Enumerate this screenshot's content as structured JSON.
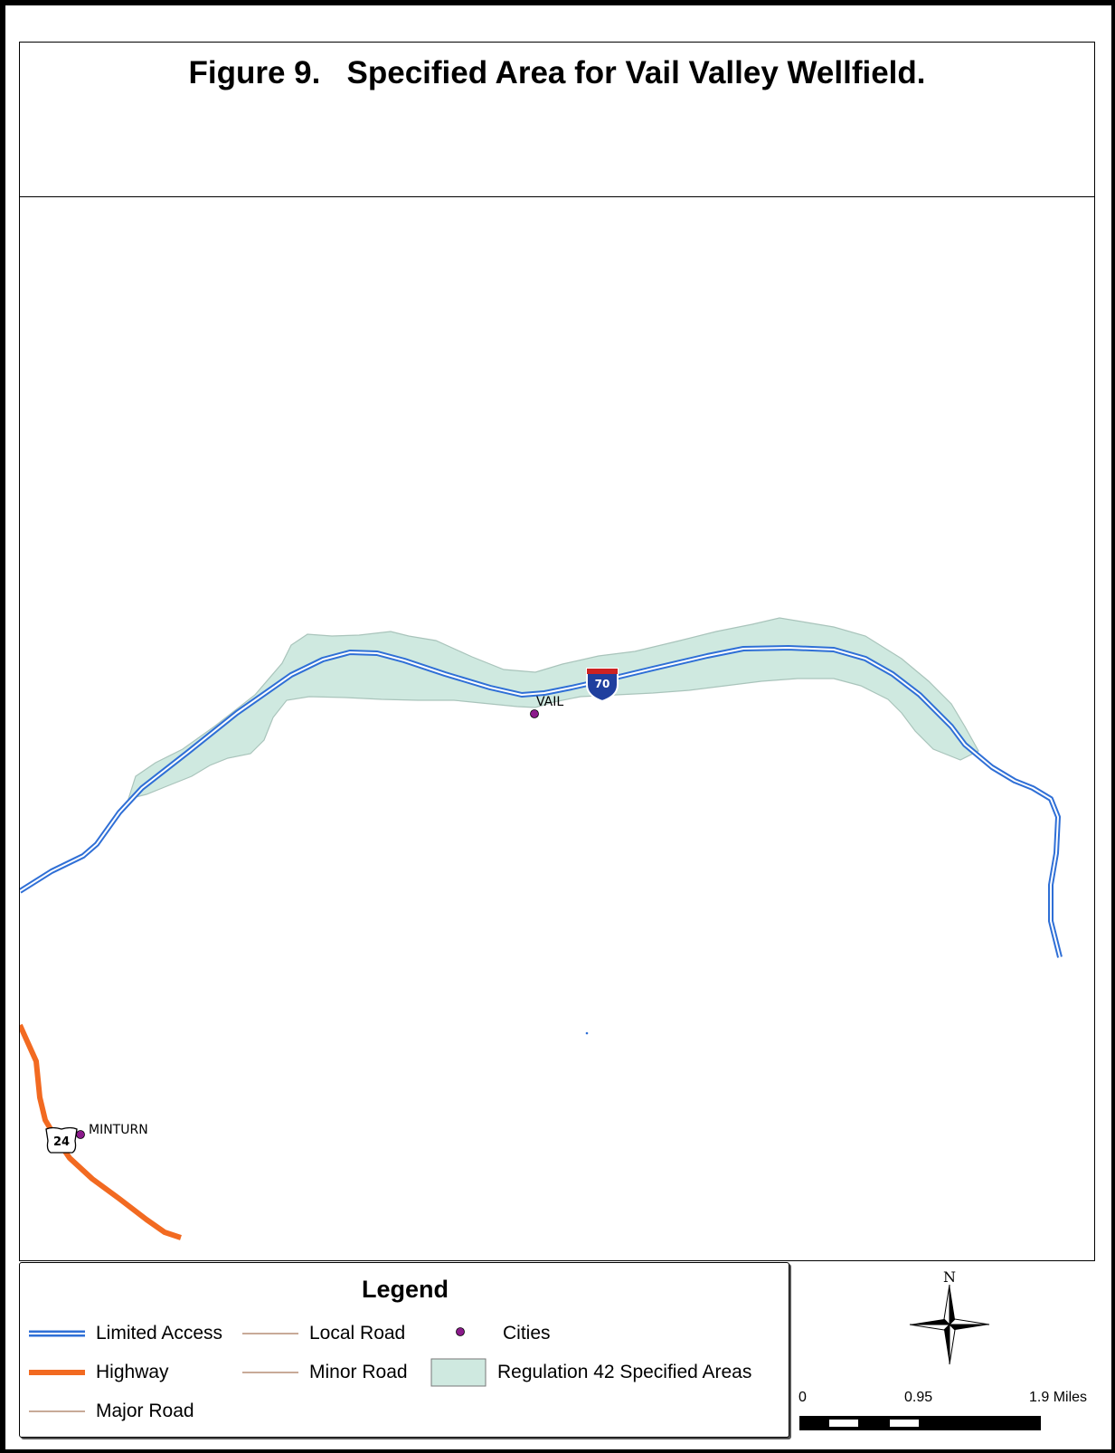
{
  "title": "Figure 9.   Specified Area for Vail Valley Wellfield.",
  "map": {
    "cities": [
      {
        "name": "VAIL"
      },
      {
        "name": "MINTURN"
      }
    ],
    "shields": {
      "interstate": "70",
      "us_route": "24"
    },
    "colors": {
      "limited_access": "#2f6fd6",
      "highway": "#f26a21",
      "regulation_area_fill": "#cfe9e0",
      "regulation_area_edge": "#a9c4bb",
      "cities": "#8b1a8b",
      "local_road": "#a8785a",
      "minor_road": "#a8785a",
      "major_road": "#a8785a"
    }
  },
  "legend": {
    "title": "Legend",
    "items": {
      "limited_access": "Limited Access",
      "highway": "Highway",
      "major_road": "Major Road",
      "local_road": "Local Road",
      "minor_road": "Minor Road",
      "cities": "Cities",
      "regulation_areas": "Regulation 42 Specified Areas"
    }
  },
  "north_arrow": {
    "label": "N"
  },
  "scale_bar": {
    "labels": [
      "0",
      "0.95",
      "1.9 Miles"
    ]
  }
}
